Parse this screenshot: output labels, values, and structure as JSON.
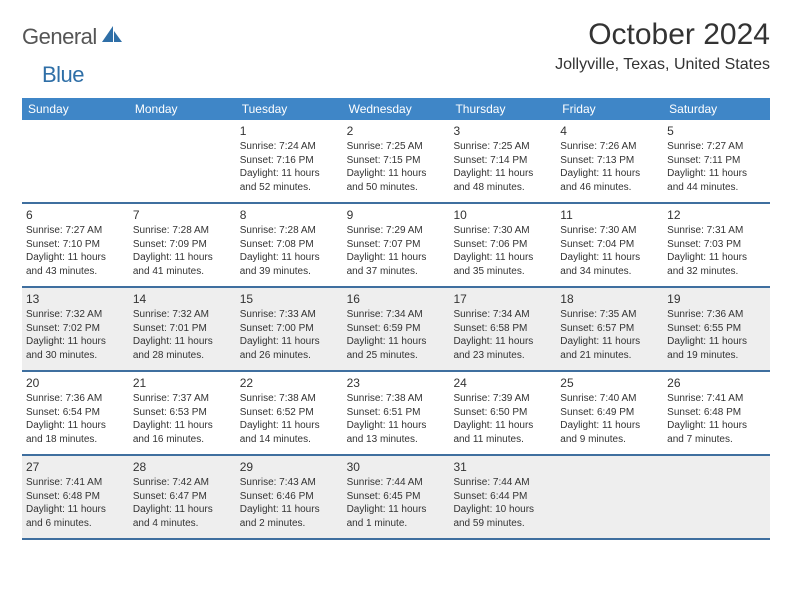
{
  "logo": {
    "part1": "General",
    "part2": "Blue"
  },
  "title": "October 2024",
  "location": "Jollyville, Texas, United States",
  "colors": {
    "header_bg": "#3f86c7",
    "header_text": "#ffffff",
    "row_border": "#3f6f9f",
    "shade_bg": "#eeeeee",
    "text": "#333333",
    "logo_gray": "#555555",
    "logo_blue": "#2f6fa7"
  },
  "days_of_week": [
    "Sunday",
    "Monday",
    "Tuesday",
    "Wednesday",
    "Thursday",
    "Friday",
    "Saturday"
  ],
  "weeks": [
    {
      "shade": false,
      "cells": [
        {
          "empty": true
        },
        {
          "empty": true
        },
        {
          "num": "1",
          "sunrise": "Sunrise: 7:24 AM",
          "sunset": "Sunset: 7:16 PM",
          "day1": "Daylight: 11 hours",
          "day2": "and 52 minutes."
        },
        {
          "num": "2",
          "sunrise": "Sunrise: 7:25 AM",
          "sunset": "Sunset: 7:15 PM",
          "day1": "Daylight: 11 hours",
          "day2": "and 50 minutes."
        },
        {
          "num": "3",
          "sunrise": "Sunrise: 7:25 AM",
          "sunset": "Sunset: 7:14 PM",
          "day1": "Daylight: 11 hours",
          "day2": "and 48 minutes."
        },
        {
          "num": "4",
          "sunrise": "Sunrise: 7:26 AM",
          "sunset": "Sunset: 7:13 PM",
          "day1": "Daylight: 11 hours",
          "day2": "and 46 minutes."
        },
        {
          "num": "5",
          "sunrise": "Sunrise: 7:27 AM",
          "sunset": "Sunset: 7:11 PM",
          "day1": "Daylight: 11 hours",
          "day2": "and 44 minutes."
        }
      ]
    },
    {
      "shade": false,
      "cells": [
        {
          "num": "6",
          "sunrise": "Sunrise: 7:27 AM",
          "sunset": "Sunset: 7:10 PM",
          "day1": "Daylight: 11 hours",
          "day2": "and 43 minutes."
        },
        {
          "num": "7",
          "sunrise": "Sunrise: 7:28 AM",
          "sunset": "Sunset: 7:09 PM",
          "day1": "Daylight: 11 hours",
          "day2": "and 41 minutes."
        },
        {
          "num": "8",
          "sunrise": "Sunrise: 7:28 AM",
          "sunset": "Sunset: 7:08 PM",
          "day1": "Daylight: 11 hours",
          "day2": "and 39 minutes."
        },
        {
          "num": "9",
          "sunrise": "Sunrise: 7:29 AM",
          "sunset": "Sunset: 7:07 PM",
          "day1": "Daylight: 11 hours",
          "day2": "and 37 minutes."
        },
        {
          "num": "10",
          "sunrise": "Sunrise: 7:30 AM",
          "sunset": "Sunset: 7:06 PM",
          "day1": "Daylight: 11 hours",
          "day2": "and 35 minutes."
        },
        {
          "num": "11",
          "sunrise": "Sunrise: 7:30 AM",
          "sunset": "Sunset: 7:04 PM",
          "day1": "Daylight: 11 hours",
          "day2": "and 34 minutes."
        },
        {
          "num": "12",
          "sunrise": "Sunrise: 7:31 AM",
          "sunset": "Sunset: 7:03 PM",
          "day1": "Daylight: 11 hours",
          "day2": "and 32 minutes."
        }
      ]
    },
    {
      "shade": true,
      "cells": [
        {
          "num": "13",
          "sunrise": "Sunrise: 7:32 AM",
          "sunset": "Sunset: 7:02 PM",
          "day1": "Daylight: 11 hours",
          "day2": "and 30 minutes."
        },
        {
          "num": "14",
          "sunrise": "Sunrise: 7:32 AM",
          "sunset": "Sunset: 7:01 PM",
          "day1": "Daylight: 11 hours",
          "day2": "and 28 minutes."
        },
        {
          "num": "15",
          "sunrise": "Sunrise: 7:33 AM",
          "sunset": "Sunset: 7:00 PM",
          "day1": "Daylight: 11 hours",
          "day2": "and 26 minutes."
        },
        {
          "num": "16",
          "sunrise": "Sunrise: 7:34 AM",
          "sunset": "Sunset: 6:59 PM",
          "day1": "Daylight: 11 hours",
          "day2": "and 25 minutes."
        },
        {
          "num": "17",
          "sunrise": "Sunrise: 7:34 AM",
          "sunset": "Sunset: 6:58 PM",
          "day1": "Daylight: 11 hours",
          "day2": "and 23 minutes."
        },
        {
          "num": "18",
          "sunrise": "Sunrise: 7:35 AM",
          "sunset": "Sunset: 6:57 PM",
          "day1": "Daylight: 11 hours",
          "day2": "and 21 minutes."
        },
        {
          "num": "19",
          "sunrise": "Sunrise: 7:36 AM",
          "sunset": "Sunset: 6:55 PM",
          "day1": "Daylight: 11 hours",
          "day2": "and 19 minutes."
        }
      ]
    },
    {
      "shade": false,
      "cells": [
        {
          "num": "20",
          "sunrise": "Sunrise: 7:36 AM",
          "sunset": "Sunset: 6:54 PM",
          "day1": "Daylight: 11 hours",
          "day2": "and 18 minutes."
        },
        {
          "num": "21",
          "sunrise": "Sunrise: 7:37 AM",
          "sunset": "Sunset: 6:53 PM",
          "day1": "Daylight: 11 hours",
          "day2": "and 16 minutes."
        },
        {
          "num": "22",
          "sunrise": "Sunrise: 7:38 AM",
          "sunset": "Sunset: 6:52 PM",
          "day1": "Daylight: 11 hours",
          "day2": "and 14 minutes."
        },
        {
          "num": "23",
          "sunrise": "Sunrise: 7:38 AM",
          "sunset": "Sunset: 6:51 PM",
          "day1": "Daylight: 11 hours",
          "day2": "and 13 minutes."
        },
        {
          "num": "24",
          "sunrise": "Sunrise: 7:39 AM",
          "sunset": "Sunset: 6:50 PM",
          "day1": "Daylight: 11 hours",
          "day2": "and 11 minutes."
        },
        {
          "num": "25",
          "sunrise": "Sunrise: 7:40 AM",
          "sunset": "Sunset: 6:49 PM",
          "day1": "Daylight: 11 hours",
          "day2": "and 9 minutes."
        },
        {
          "num": "26",
          "sunrise": "Sunrise: 7:41 AM",
          "sunset": "Sunset: 6:48 PM",
          "day1": "Daylight: 11 hours",
          "day2": "and 7 minutes."
        }
      ]
    },
    {
      "shade": true,
      "cells": [
        {
          "num": "27",
          "sunrise": "Sunrise: 7:41 AM",
          "sunset": "Sunset: 6:48 PM",
          "day1": "Daylight: 11 hours",
          "day2": "and 6 minutes."
        },
        {
          "num": "28",
          "sunrise": "Sunrise: 7:42 AM",
          "sunset": "Sunset: 6:47 PM",
          "day1": "Daylight: 11 hours",
          "day2": "and 4 minutes."
        },
        {
          "num": "29",
          "sunrise": "Sunrise: 7:43 AM",
          "sunset": "Sunset: 6:46 PM",
          "day1": "Daylight: 11 hours",
          "day2": "and 2 minutes."
        },
        {
          "num": "30",
          "sunrise": "Sunrise: 7:44 AM",
          "sunset": "Sunset: 6:45 PM",
          "day1": "Daylight: 11 hours",
          "day2": "and 1 minute."
        },
        {
          "num": "31",
          "sunrise": "Sunrise: 7:44 AM",
          "sunset": "Sunset: 6:44 PM",
          "day1": "Daylight: 10 hours",
          "day2": "and 59 minutes."
        },
        {
          "empty": true
        },
        {
          "empty": true
        }
      ]
    }
  ]
}
